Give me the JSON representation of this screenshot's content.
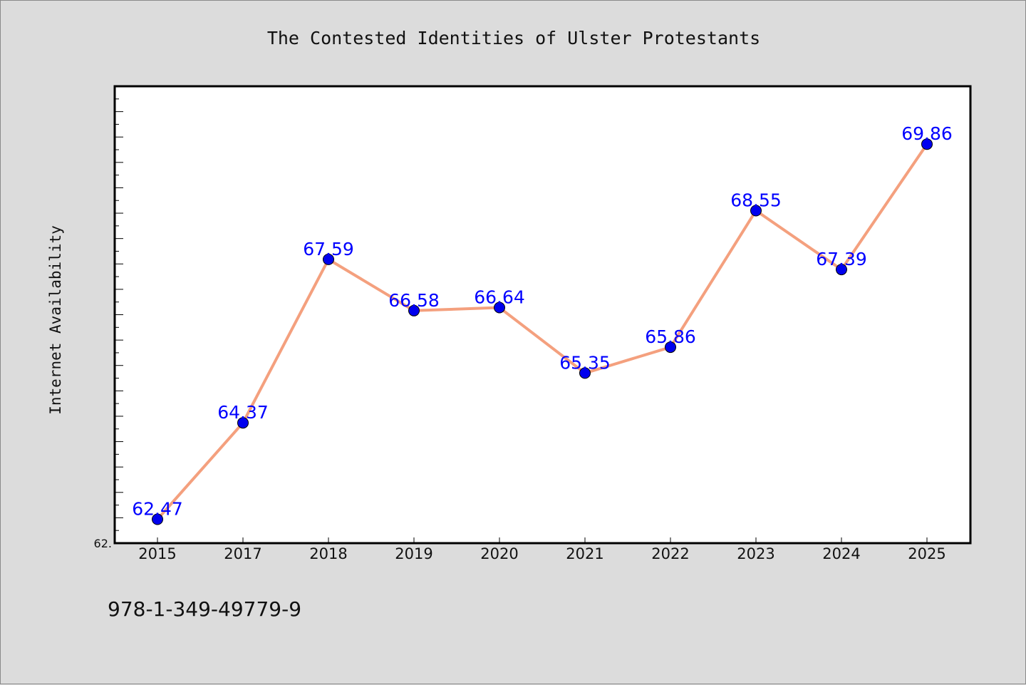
{
  "chart_data": {
    "type": "line",
    "title": "The Contested Identities of Ulster Protestants",
    "xlabel": "",
    "ylabel": "Internet Availability",
    "categories": [
      "2015",
      "2017",
      "2018",
      "2019",
      "2020",
      "2021",
      "2022",
      "2023",
      "2024",
      "2025"
    ],
    "series": [
      {
        "values": [
          62.47,
          64.37,
          67.59,
          66.58,
          66.64,
          65.35,
          65.86,
          68.55,
          67.39,
          69.86
        ],
        "labels": [
          "62.47",
          "64.37",
          "67.59",
          "66.58",
          "66.64",
          "65.35",
          "65.86",
          "68.55",
          "67.39",
          "69.86"
        ]
      }
    ],
    "ylim": [
      62.0,
      71.0
    ],
    "y_tick_label": "62.",
    "grid": false,
    "legend": "none",
    "colors": {
      "line": "#f4a07e",
      "marker": "#0000ee",
      "data_label": "#0000ff",
      "axis": "#000000",
      "plot_background": "#ffffff",
      "page_background": "#dcdcdc"
    }
  },
  "footer": {
    "isbn": "978-1-349-49779-9"
  }
}
